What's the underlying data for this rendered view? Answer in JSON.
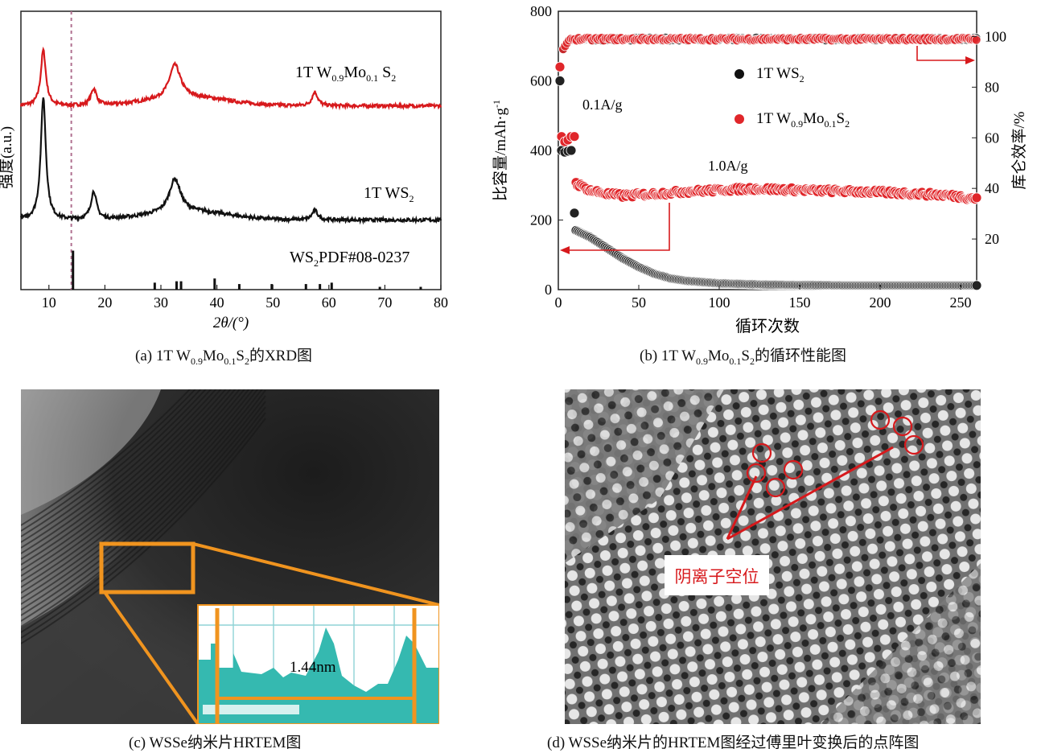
{
  "panels": {
    "a": {
      "caption_prefix": "(a) 1T W",
      "caption_sub1": "0.9",
      "caption_mid": "Mo",
      "caption_sub2": "0.1",
      "caption_mid2": "S",
      "caption_sub3": "2",
      "caption_suffix": "的XRD图"
    },
    "b": {
      "caption_prefix": "(b) 1T W",
      "caption_sub1": "0.9",
      "caption_mid": "Mo",
      "caption_sub2": "0.1",
      "caption_mid2": "S",
      "caption_sub3": "2",
      "caption_suffix": "的循环性能图"
    },
    "c": {
      "caption": "(c) WSSe纳米片HRTEM图",
      "inset_label": "1.44nm"
    },
    "d": {
      "caption": "(d) WSSe纳米片的HRTEM图经过傅里叶变换后的点阵图",
      "annotation": "阴离子空位",
      "annotation_color": "#d7191c"
    }
  },
  "chart_data": [
    {
      "type": "line",
      "title": "",
      "xlabel": "2θ/(°)",
      "ylabel": "强度(a.u.)",
      "xlim": [
        5,
        80
      ],
      "xticks": [
        10,
        20,
        30,
        40,
        50,
        60,
        70,
        80
      ],
      "dashed_line_x": 14,
      "series": [
        {
          "name": "1T W0.9Mo0.1S2",
          "color": "#d7191c",
          "baseline": 0.66,
          "peaks": [
            [
              9.0,
              0.2
            ],
            [
              18.0,
              0.06
            ],
            [
              32.5,
              0.12
            ],
            [
              57.5,
              0.05
            ]
          ]
        },
        {
          "name": "1T WS2",
          "color": "#111111",
          "baseline": 0.25,
          "peaks": [
            [
              9.0,
              0.44
            ],
            [
              18.0,
              0.1
            ],
            [
              32.5,
              0.12
            ],
            [
              57.5,
              0.035
            ]
          ]
        }
      ],
      "reference": {
        "name": "WS2PDF#08-0237",
        "sticks": [
          [
            14.3,
            0.14
          ],
          [
            28.9,
            0.025
          ],
          [
            32.8,
            0.03
          ],
          [
            33.6,
            0.03
          ],
          [
            39.6,
            0.04
          ],
          [
            44.0,
            0.02
          ],
          [
            49.8,
            0.02
          ],
          [
            55.9,
            0.02
          ],
          [
            58.4,
            0.02
          ],
          [
            60.5,
            0.025
          ],
          [
            69.1,
            0.01
          ],
          [
            76.4,
            0.01
          ]
        ]
      },
      "legend_labels": [
        {
          "main": "1T W",
          "s1": "0.9",
          "m2": "Mo",
          "s2": "0.1",
          "m3": " S",
          "s3": "2"
        },
        {
          "main": "1T WS",
          "s1": "2"
        },
        {
          "main": "WS",
          "s1": "2",
          "rest": "PDF#08-0237"
        }
      ]
    },
    {
      "type": "scatter",
      "xlabel": "循环次数",
      "ylabel_left": "比容量/mAh·g",
      "ylabel_left_sup": "-1",
      "ylabel_right": "库仑效率/%",
      "xlim": [
        0,
        260
      ],
      "ylim_left": [
        0,
        800
      ],
      "ylim_right": [
        0,
        110
      ],
      "xticks": [
        0,
        50,
        100,
        150,
        200,
        250
      ],
      "yticks_left": [
        0,
        200,
        400,
        600,
        800
      ],
      "yticks_right": [
        20,
        40,
        60,
        80,
        100
      ],
      "series": [
        {
          "name": "1T WS2",
          "color": "#111111",
          "marker_color": "#222222",
          "capacity_points": [
            [
              1,
              600
            ],
            [
              2,
              400
            ],
            [
              4,
              395
            ],
            [
              6,
              398
            ],
            [
              8,
              400
            ],
            [
              10,
              220
            ]
          ],
          "capacity_curve": [
            [
              11,
              170
            ],
            [
              20,
              150
            ],
            [
              30,
              120
            ],
            [
              40,
              90
            ],
            [
              50,
              65
            ],
            [
              60,
              45
            ],
            [
              70,
              32
            ],
            [
              80,
              25
            ],
            [
              100,
              18
            ],
            [
              130,
              14
            ],
            [
              180,
              12
            ],
            [
              260,
              12
            ]
          ],
          "coulombic_efficiency": 99
        },
        {
          "name": "1T W0.9Mo0.1S2",
          "color": "#d7191c",
          "marker_color": "#e0262a",
          "capacity_points": [
            [
              1,
              640
            ],
            [
              2,
              440
            ],
            [
              4,
              425
            ],
            [
              6,
              430
            ],
            [
              8,
              440
            ],
            [
              10,
              440
            ]
          ],
          "capacity_curve": [
            [
              11,
              305
            ],
            [
              20,
              285
            ],
            [
              30,
              275
            ],
            [
              40,
              270
            ],
            [
              60,
              275
            ],
            [
              80,
              282
            ],
            [
              120,
              290
            ],
            [
              160,
              285
            ],
            [
              200,
              280
            ],
            [
              240,
              272
            ],
            [
              260,
              262
            ]
          ],
          "coulombic_efficiency": 99
        }
      ],
      "annotations": [
        "0.1A/g",
        "1.0A/g"
      ],
      "legend_labels": [
        {
          "main": "1T WS",
          "s1": "2"
        },
        {
          "main": "1T W",
          "s1": "0.9",
          "m2": "Mo",
          "s2": "0.1",
          "m3": "S",
          "s3": "2"
        }
      ]
    }
  ]
}
